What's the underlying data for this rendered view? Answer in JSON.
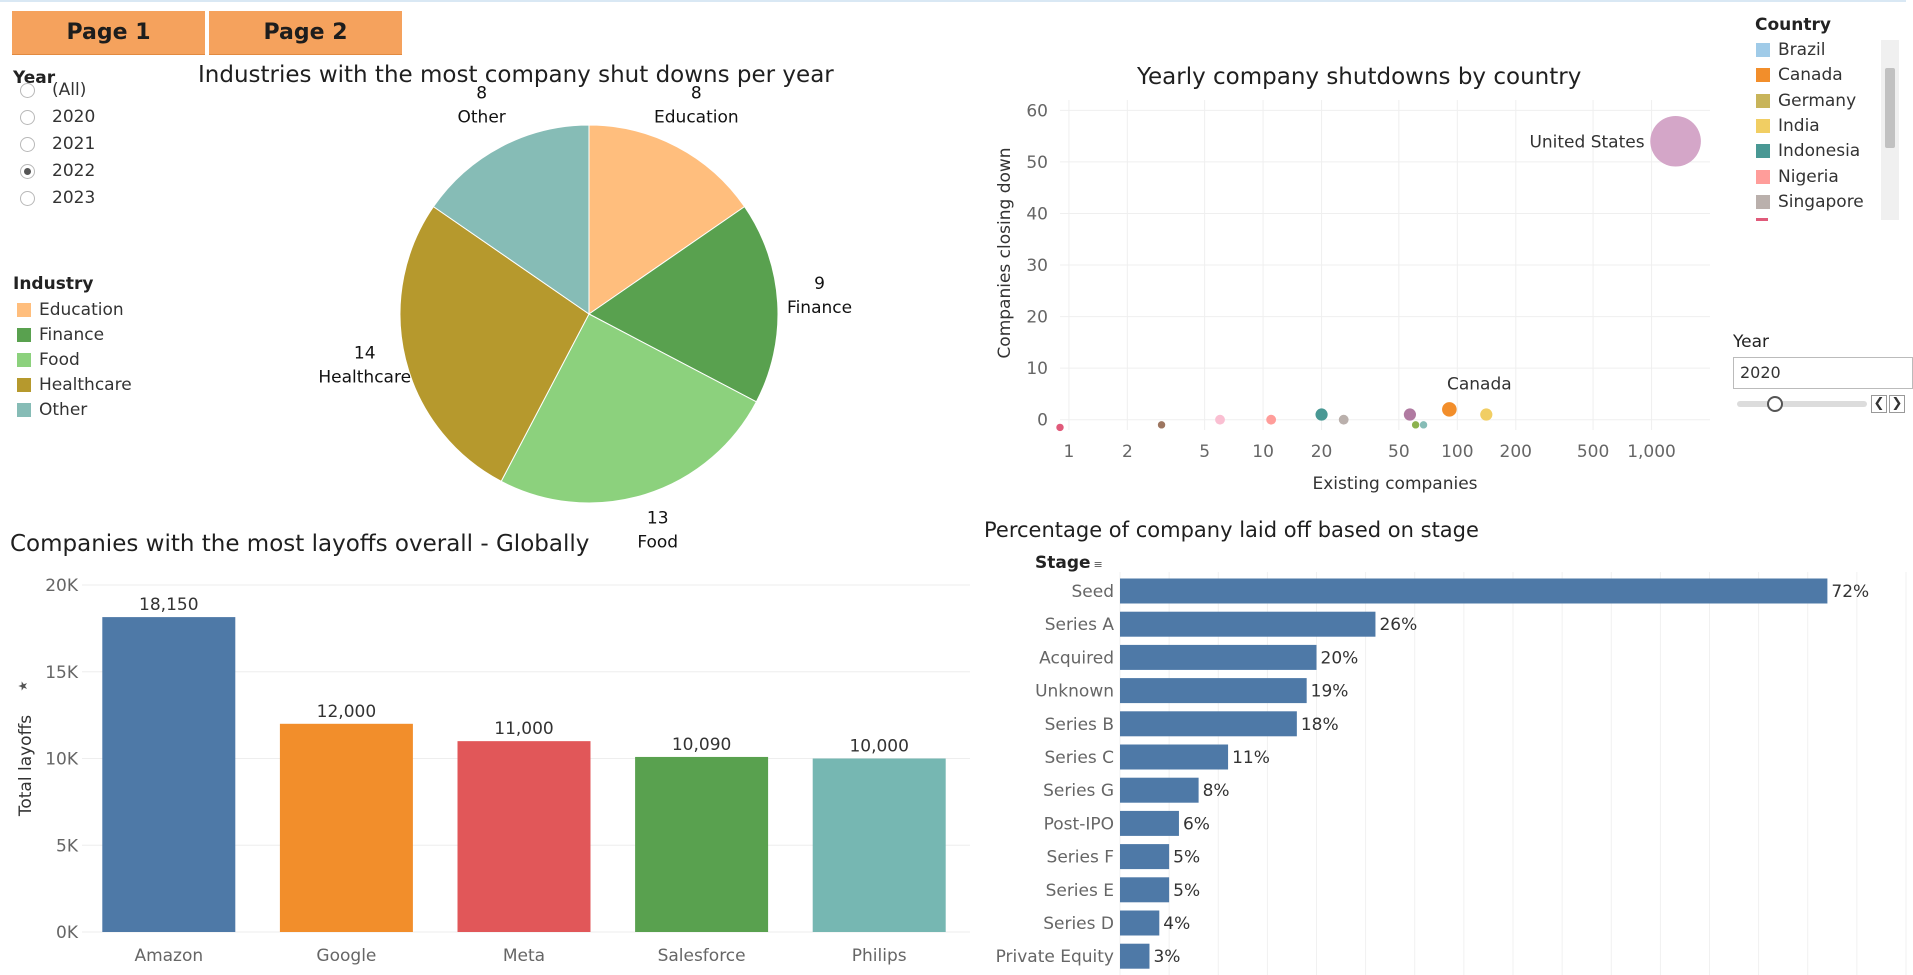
{
  "nav": {
    "page1": "Page 1",
    "page2": "Page 2"
  },
  "year_filter": {
    "title": "Year",
    "options": [
      "(All)",
      "2020",
      "2021",
      "2022",
      "2023"
    ],
    "selected": "2022"
  },
  "industry_legend": {
    "title": "Industry",
    "items": [
      {
        "label": "Education",
        "color": "#ffbe7d"
      },
      {
        "label": "Finance",
        "color": "#59a14f"
      },
      {
        "label": "Food",
        "color": "#8cd17d"
      },
      {
        "label": "Healthcare",
        "color": "#b6992d"
      },
      {
        "label": "Other",
        "color": "#86bcb6"
      }
    ]
  },
  "country_legend": {
    "title": "Country",
    "items": [
      {
        "label": "Brazil",
        "color": "#a0cbe8"
      },
      {
        "label": "Canada",
        "color": "#f28e2b"
      },
      {
        "label": "Germany",
        "color": "#c8b45a"
      },
      {
        "label": "India",
        "color": "#f1ce63"
      },
      {
        "label": "Indonesia",
        "color": "#499894"
      },
      {
        "label": "Nigeria",
        "color": "#ff9d9a"
      },
      {
        "label": "Singapore",
        "color": "#bab0ac"
      }
    ]
  },
  "year_slider": {
    "title": "Year",
    "value": "2020"
  },
  "chart_data": [
    {
      "id": "pie",
      "type": "pie",
      "title": "Industries with the most company shut downs per year",
      "slices": [
        {
          "label": "Education",
          "value": 8,
          "color": "#ffbe7d"
        },
        {
          "label": "Finance",
          "value": 9,
          "color": "#59a14f"
        },
        {
          "label": "Food",
          "value": 13,
          "color": "#8cd17d"
        },
        {
          "label": "Healthcare",
          "value": 14,
          "color": "#b6992d"
        },
        {
          "label": "Other",
          "value": 8,
          "color": "#86bcb6"
        }
      ]
    },
    {
      "id": "scatter",
      "type": "scatter",
      "title": "Yearly company shutdowns by country",
      "xlabel": "Existing companies",
      "ylabel": "Companies closing down",
      "xscale": "log",
      "xlim": [
        0.9,
        2000
      ],
      "ylim": [
        -2,
        62
      ],
      "xticks": [
        1,
        2,
        5,
        10,
        20,
        50,
        100,
        200,
        500,
        1000
      ],
      "xtick_labels": [
        "1",
        "2",
        "5",
        "10",
        "20",
        "50",
        "100",
        "200",
        "500",
        "1,000"
      ],
      "yticks": [
        0,
        10,
        20,
        30,
        40,
        50,
        60
      ],
      "points": [
        {
          "x": 0.9,
          "y": -1.5,
          "color": "#e05a7a",
          "size": 1
        },
        {
          "x": 3,
          "y": -1,
          "color": "#9d7660",
          "size": 1
        },
        {
          "x": 6,
          "y": 0,
          "color": "#fabfd2",
          "size": 2
        },
        {
          "x": 11,
          "y": 0,
          "color": "#ff9d9a",
          "size": 2
        },
        {
          "x": 20,
          "y": 1,
          "color": "#499894",
          "size": 3
        },
        {
          "x": 26,
          "y": 0,
          "color": "#bab0ac",
          "size": 2
        },
        {
          "x": 57,
          "y": 1,
          "color": "#b07aa1",
          "size": 3
        },
        {
          "x": 61,
          "y": -1,
          "color": "#8cb24e",
          "size": 1
        },
        {
          "x": 67,
          "y": -1,
          "color": "#86bcb6",
          "size": 1
        },
        {
          "x": 91,
          "y": 2,
          "color": "#f28e2b",
          "size": 4
        },
        {
          "x": 141,
          "y": 1,
          "color": "#f1ce63",
          "size": 3
        },
        {
          "x": 1330,
          "y": 54,
          "color": "#d4a6c8",
          "size": 19
        }
      ],
      "annotations": [
        {
          "text": "United States",
          "x": 1330,
          "y": 54
        },
        {
          "text": "Canada",
          "x": 91,
          "y": 2
        }
      ]
    },
    {
      "id": "layoffs",
      "type": "bar",
      "title": "Companies with the most layoffs overall - Globally",
      "ylabel": "Total layoffs",
      "ylim": [
        0,
        20000
      ],
      "yticks": [
        0,
        5000,
        10000,
        15000,
        20000
      ],
      "ytick_labels": [
        "0K",
        "5K",
        "10K",
        "15K",
        "20K"
      ],
      "categories": [
        "Amazon",
        "Google",
        "Meta",
        "Salesforce",
        "Philips"
      ],
      "values": [
        18150,
        12000,
        11000,
        10090,
        10000
      ],
      "value_labels": [
        "18,150",
        "12,000",
        "11,000",
        "10,090",
        "10,000"
      ],
      "colors": [
        "#4e79a7",
        "#f28e2b",
        "#e15759",
        "#59a14f",
        "#76b7b2"
      ]
    },
    {
      "id": "stage",
      "type": "bar",
      "orientation": "horizontal",
      "title": "Percentage of company laid off based on stage",
      "header": "Stage",
      "xlim": [
        0,
        80
      ],
      "categories": [
        "Seed",
        "Series A",
        "Acquired",
        "Unknown",
        "Series B",
        "Series C",
        "Series G",
        "Post-IPO",
        "Series F",
        "Series E",
        "Series D",
        "Private Equity"
      ],
      "values": [
        72,
        26,
        20,
        19,
        18,
        11,
        8,
        6,
        5,
        5,
        4,
        3
      ],
      "value_labels": [
        "72%",
        "26%",
        "20%",
        "19%",
        "18%",
        "11%",
        "8%",
        "6%",
        "5%",
        "5%",
        "4%",
        "3%"
      ],
      "color": "#4e79a7"
    }
  ]
}
